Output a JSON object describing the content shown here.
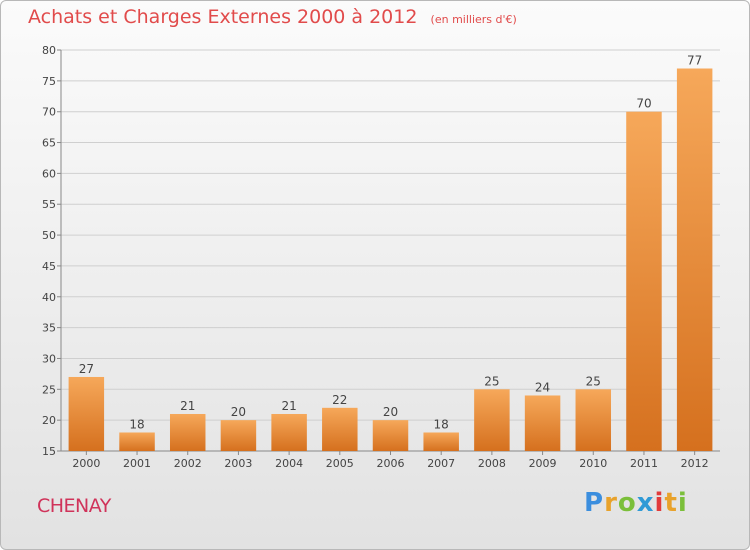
{
  "title": "Achats et Charges Externes 2000 à 2012",
  "unit": "(en milliers d'€)",
  "place": "CHENAY",
  "logo": {
    "text": "Proxiti",
    "letters": [
      "P",
      "r",
      "o",
      "x",
      "i",
      "t",
      "i"
    ],
    "colors": [
      "#3b8ede",
      "#e8a22b",
      "#7bbf3a",
      "#2f9ad6",
      "#e23b3b",
      "#e8a22b",
      "#7bbf3a"
    ]
  },
  "colors": {
    "title": "#e14b4b",
    "place": "#d0335a",
    "bar_top": "#f6a85a",
    "bar_bottom": "#d5701e"
  },
  "chart_data": {
    "type": "bar",
    "categories": [
      "2000",
      "2001",
      "2002",
      "2003",
      "2004",
      "2005",
      "2006",
      "2007",
      "2008",
      "2009",
      "2010",
      "2011",
      "2012"
    ],
    "values": [
      27,
      18,
      21,
      20,
      21,
      22,
      20,
      18,
      25,
      24,
      25,
      70,
      77
    ],
    "title": "Achats et Charges Externes 2000 à 2012",
    "subtitle": "(en milliers d'€)",
    "xlabel": "",
    "ylabel": "",
    "ylim": [
      15,
      80
    ],
    "yticks": [
      15,
      20,
      25,
      30,
      35,
      40,
      45,
      50,
      55,
      60,
      65,
      70,
      75,
      80
    ],
    "grid": true,
    "legend": "none"
  }
}
